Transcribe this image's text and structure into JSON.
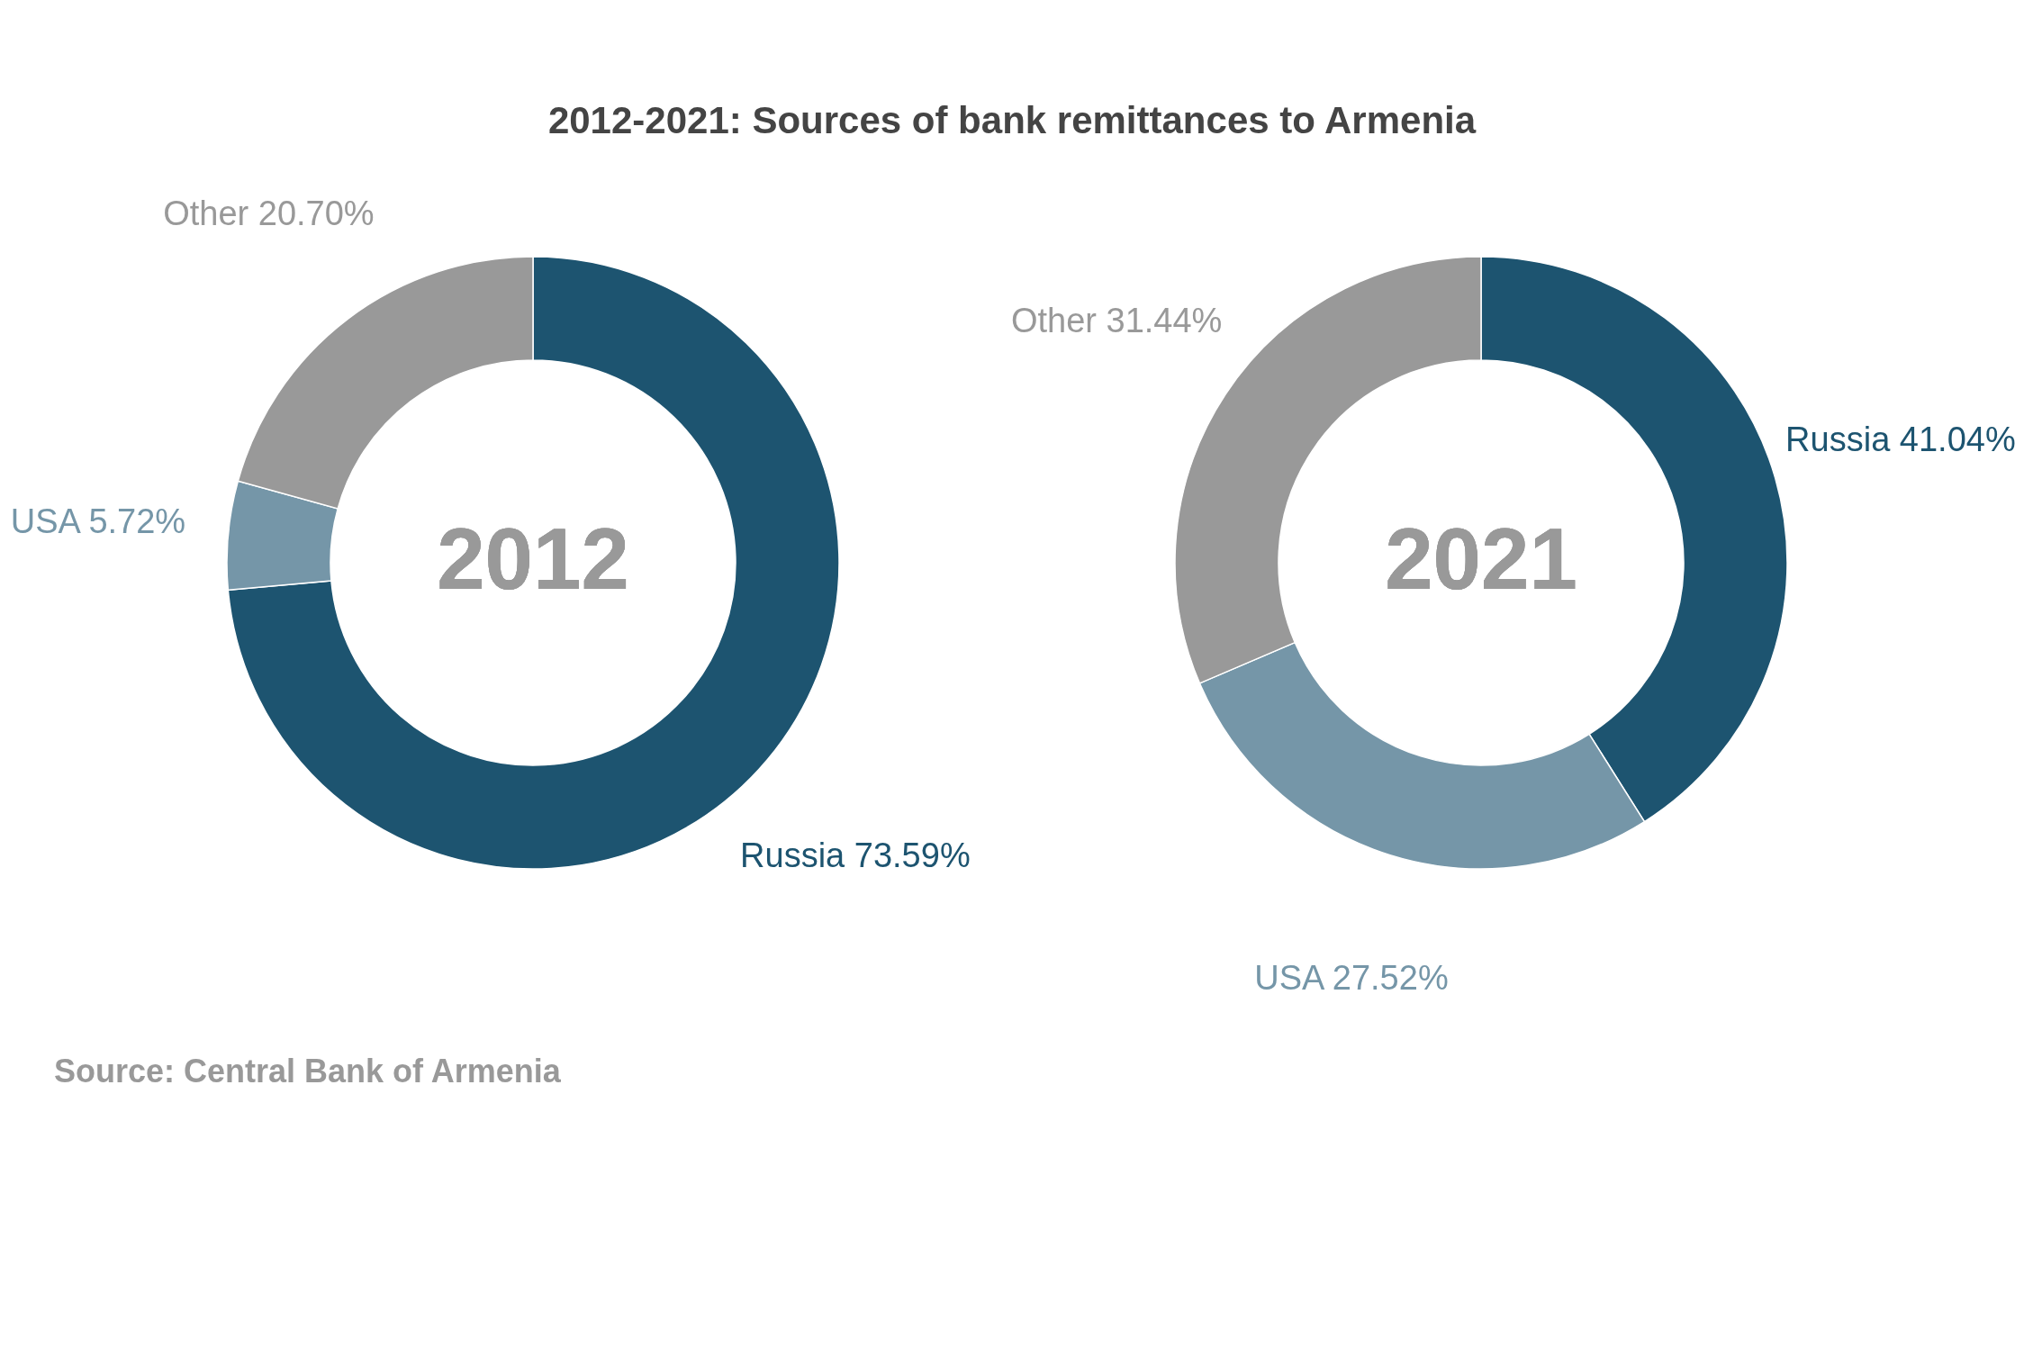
{
  "chart_data": [
    {
      "type": "donut",
      "title": "2012-2021: Sources of bank remittances to Armenia",
      "subtitle": "2012",
      "categories": [
        "Russia",
        "USA",
        "Other"
      ],
      "values": [
        73.59,
        5.72,
        20.7
      ],
      "value_labels": [
        "73.59%",
        "5.72%",
        "20.70%"
      ],
      "colors": [
        "#1d5470",
        "#7596a8",
        "#999999"
      ],
      "legend": false,
      "annotations": [
        "Source: Central Bank of Armenia"
      ]
    },
    {
      "type": "donut",
      "subtitle": "2021",
      "categories": [
        "Russia",
        "USA",
        "Other"
      ],
      "values": [
        41.04,
        27.52,
        31.44
      ],
      "value_labels": [
        "41.04%",
        "27.52%",
        "31.44%"
      ],
      "colors": [
        "#1d5470",
        "#7596a8",
        "#999999"
      ],
      "legend": false
    }
  ]
}
